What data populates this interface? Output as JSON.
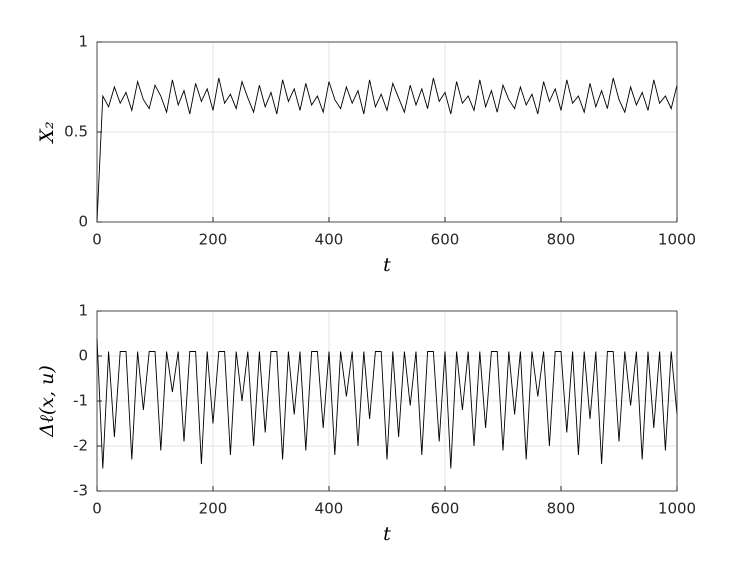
{
  "chart_data": [
    {
      "type": "line",
      "xlabel": "t",
      "ylabel": "X₂",
      "grid": true,
      "xlim": [
        0,
        1000
      ],
      "xticks": [
        0,
        200,
        400,
        600,
        800,
        1000
      ],
      "ylim": [
        0,
        1
      ],
      "yticks": [
        0,
        0.5,
        1
      ],
      "x": [
        0,
        10,
        20,
        30,
        40,
        50,
        60,
        70,
        80,
        90,
        100,
        110,
        120,
        130,
        140,
        150,
        160,
        170,
        180,
        190,
        200,
        210,
        220,
        230,
        240,
        250,
        260,
        270,
        280,
        290,
        300,
        310,
        320,
        330,
        340,
        350,
        360,
        370,
        380,
        390,
        400,
        410,
        420,
        430,
        440,
        450,
        460,
        470,
        480,
        490,
        500,
        510,
        520,
        530,
        540,
        550,
        560,
        570,
        580,
        590,
        600,
        610,
        620,
        630,
        640,
        650,
        660,
        670,
        680,
        690,
        700,
        710,
        720,
        730,
        740,
        750,
        760,
        770,
        780,
        790,
        800,
        810,
        820,
        830,
        840,
        850,
        860,
        870,
        880,
        890,
        900,
        910,
        920,
        930,
        940,
        950,
        960,
        970,
        980,
        990,
        1000
      ],
      "series": [
        {
          "color": "#000000",
          "values": [
            0,
            0.7,
            0.64,
            0.75,
            0.66,
            0.72,
            0.62,
            0.78,
            0.68,
            0.63,
            0.76,
            0.7,
            0.61,
            0.79,
            0.65,
            0.73,
            0.6,
            0.77,
            0.67,
            0.74,
            0.62,
            0.8,
            0.66,
            0.71,
            0.63,
            0.78,
            0.69,
            0.61,
            0.76,
            0.64,
            0.72,
            0.6,
            0.79,
            0.67,
            0.74,
            0.62,
            0.77,
            0.65,
            0.7,
            0.61,
            0.78,
            0.68,
            0.63,
            0.75,
            0.66,
            0.73,
            0.6,
            0.79,
            0.64,
            0.71,
            0.62,
            0.77,
            0.69,
            0.61,
            0.76,
            0.65,
            0.74,
            0.63,
            0.8,
            0.67,
            0.72,
            0.6,
            0.78,
            0.66,
            0.7,
            0.62,
            0.79,
            0.64,
            0.73,
            0.61,
            0.76,
            0.68,
            0.63,
            0.75,
            0.65,
            0.71,
            0.6,
            0.78,
            0.67,
            0.74,
            0.62,
            0.79,
            0.66,
            0.7,
            0.61,
            0.77,
            0.64,
            0.73,
            0.63,
            0.8,
            0.68,
            0.61,
            0.75,
            0.65,
            0.72,
            0.62,
            0.79,
            0.66,
            0.7,
            0.63,
            0.76
          ]
        }
      ]
    },
    {
      "type": "line",
      "xlabel": "t",
      "ylabel": "Δℓ(x, u)",
      "grid": true,
      "xlim": [
        0,
        1000
      ],
      "xticks": [
        0,
        200,
        400,
        600,
        800,
        1000
      ],
      "ylim": [
        -3,
        1
      ],
      "yticks": [
        -3,
        -2,
        -1,
        0,
        1
      ],
      "x": [
        0,
        10,
        20,
        30,
        40,
        50,
        60,
        70,
        80,
        90,
        100,
        110,
        120,
        130,
        140,
        150,
        160,
        170,
        180,
        190,
        200,
        210,
        220,
        230,
        240,
        250,
        260,
        270,
        280,
        290,
        300,
        310,
        320,
        330,
        340,
        350,
        360,
        370,
        380,
        390,
        400,
        410,
        420,
        430,
        440,
        450,
        460,
        470,
        480,
        490,
        500,
        510,
        520,
        530,
        540,
        550,
        560,
        570,
        580,
        590,
        600,
        610,
        620,
        630,
        640,
        650,
        660,
        670,
        680,
        690,
        700,
        710,
        720,
        730,
        740,
        750,
        760,
        770,
        780,
        790,
        800,
        810,
        820,
        830,
        840,
        850,
        860,
        870,
        880,
        890,
        900,
        910,
        920,
        930,
        940,
        950,
        960,
        970,
        980,
        990,
        1000
      ],
      "series": [
        {
          "color": "#000000",
          "values": [
            0.4,
            -2.5,
            0.1,
            -1.8,
            0.1,
            0.1,
            -2.3,
            0.1,
            -1.2,
            0.1,
            0.1,
            -2.1,
            0.1,
            -0.8,
            0.1,
            -1.9,
            0.1,
            0.1,
            -2.4,
            0.1,
            -1.5,
            0.1,
            0.1,
            -2.2,
            0.1,
            -1.0,
            0.1,
            -2.0,
            0.1,
            -1.7,
            0.1,
            0.1,
            -2.3,
            0.1,
            -1.3,
            0.1,
            -2.1,
            0.1,
            0.1,
            -1.6,
            0.1,
            -2.2,
            0.1,
            -0.9,
            0.1,
            -2.0,
            0.1,
            -1.4,
            0.1,
            0.1,
            -2.3,
            0.1,
            -1.8,
            0.1,
            -1.1,
            0.1,
            -2.2,
            0.1,
            0.1,
            -1.9,
            0.1,
            -2.5,
            0.1,
            -1.2,
            0.1,
            -2.0,
            0.1,
            -1.6,
            0.1,
            0.1,
            -2.1,
            0.1,
            -1.3,
            0.1,
            -2.3,
            0.1,
            -0.9,
            0.1,
            -2.0,
            0.1,
            0.1,
            -1.7,
            0.1,
            -2.2,
            0.1,
            -1.4,
            0.1,
            -2.4,
            0.1,
            0.1,
            -1.9,
            0.1,
            -1.1,
            0.1,
            -2.3,
            0.1,
            -1.6,
            0.1,
            -2.1,
            0.1,
            -1.3
          ]
        }
      ]
    }
  ]
}
